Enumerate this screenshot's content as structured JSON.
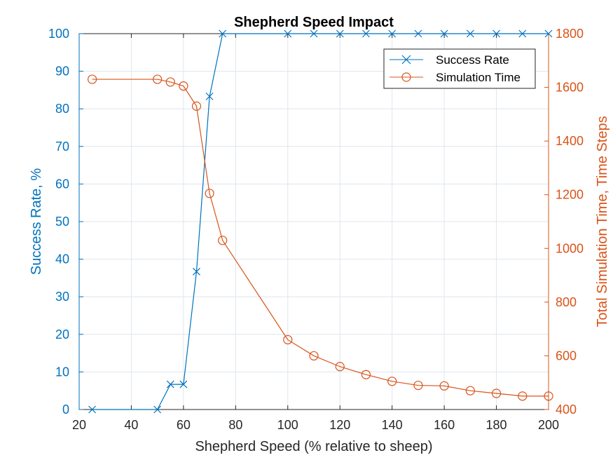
{
  "chart_data": {
    "type": "line",
    "title": "Shepherd Speed Impact",
    "xlabel": "Shepherd Speed (% relative to sheep)",
    "ylabel_left": "Success Rate, %",
    "ylabel_right": "Total Simulation Time,  Time Steps",
    "xlim": [
      20,
      200
    ],
    "ylim_left": [
      0,
      100
    ],
    "ylim_right": [
      400,
      1800
    ],
    "x_ticks": [
      20,
      40,
      60,
      80,
      100,
      120,
      140,
      160,
      180,
      200
    ],
    "y_left_ticks": [
      0,
      10,
      20,
      30,
      40,
      50,
      60,
      70,
      80,
      90,
      100
    ],
    "y_right_ticks": [
      400,
      600,
      800,
      1000,
      1200,
      1400,
      1600,
      1800
    ],
    "grid": true,
    "legend_position": "top-right",
    "series": [
      {
        "name": "Success Rate",
        "axis": "left",
        "marker": "x",
        "color": "#0072BD",
        "x": [
          25,
          50,
          55,
          60,
          65,
          70,
          75,
          100,
          110,
          120,
          130,
          140,
          150,
          160,
          170,
          180,
          190,
          200
        ],
        "values": [
          0,
          0,
          6.7,
          6.7,
          36.7,
          83.3,
          100,
          100,
          100,
          100,
          100,
          100,
          100,
          100,
          100,
          100,
          100,
          100
        ]
      },
      {
        "name": "Simulation Time",
        "axis": "right",
        "marker": "o",
        "color": "#D95319",
        "x": [
          25,
          50,
          55,
          60,
          65,
          70,
          75,
          100,
          110,
          120,
          130,
          140,
          150,
          160,
          170,
          180,
          190,
          200
        ],
        "values": [
          1630,
          1630,
          1620,
          1605,
          1530,
          1205,
          1030,
          660,
          600,
          560,
          530,
          505,
          490,
          488,
          470,
          460,
          450,
          450
        ]
      }
    ]
  }
}
